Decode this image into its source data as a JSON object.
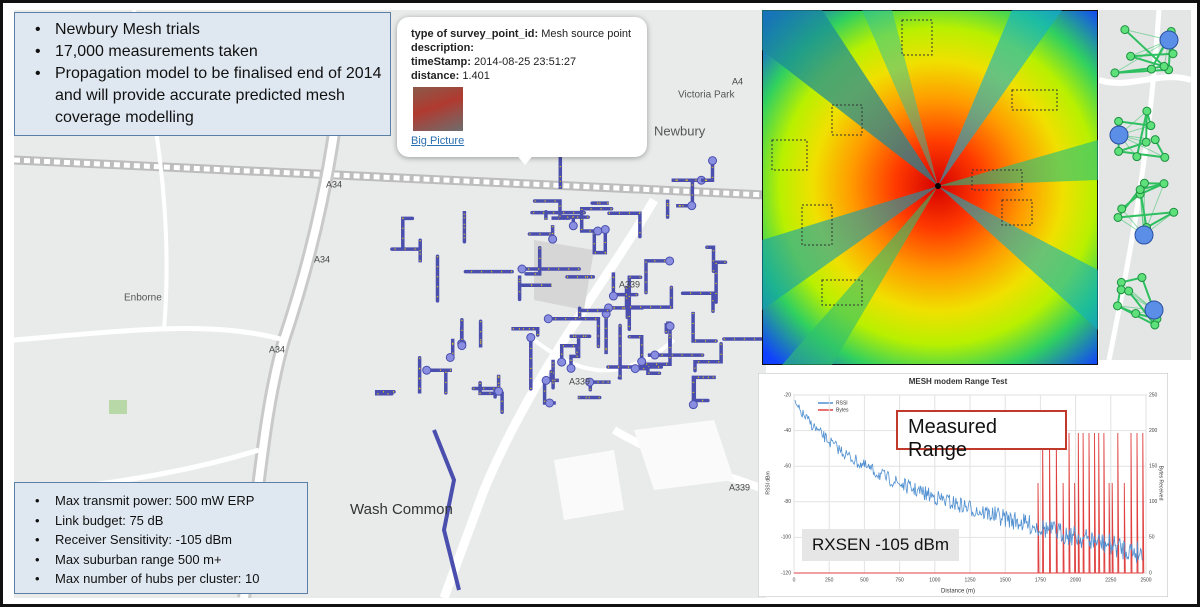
{
  "summary": {
    "bullets": [
      "Newbury Mesh trials",
      "17,000 measurements taken",
      "Propagation model to be finalised end of 2014 and will provide accurate predicted mesh coverage modelling"
    ]
  },
  "specs": {
    "bullets": [
      "Max transmit power: 500 mW ERP",
      "Link budget: 75 dB",
      "Receiver Sensitivity: -105 dBm",
      "Max suburban range 500 m+",
      "Max number of hubs per cluster: 10"
    ]
  },
  "popup": {
    "fields": [
      {
        "key": "type of survey_point_id:",
        "value": "Mesh source point"
      },
      {
        "key": "description:"
      },
      {
        "key": "timeStamp:",
        "value": "2014-08-25 23:51:27"
      },
      {
        "key": "distance:",
        "value": "1.401"
      }
    ],
    "link": "Big Picture"
  },
  "map": {
    "places": [
      "Victoria Park",
      "Newbury",
      "Enborne",
      "Wash Common"
    ],
    "roads": [
      "A34",
      "A34",
      "A34",
      "A339",
      "A339",
      "A339",
      "A4"
    ]
  },
  "range_chart": {
    "title": "MESH modem Range Test",
    "x_label": "Distance (m)",
    "y_label": "RSSI dBm",
    "y2_label": "Bytes Received",
    "legend": [
      "RSSI",
      "Bytes"
    ],
    "xticks": [
      "0",
      "250",
      "500",
      "750",
      "1000",
      "1250",
      "1500",
      "1750",
      "2000",
      "2250",
      "2500"
    ],
    "yticks": [
      "-20",
      "-40",
      "-60",
      "-80",
      "-100",
      "-120"
    ],
    "y2ticks": [
      "250",
      "200",
      "150",
      "100",
      "50",
      "0"
    ],
    "callouts": [
      "Measured Range",
      "RXSEN -105 dBm"
    ]
  }
}
